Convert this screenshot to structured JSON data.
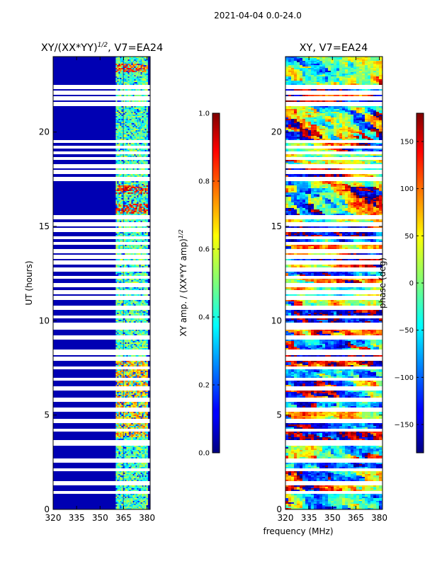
{
  "suptitle": "2021-04-04 0.0-24.0",
  "shared_xlabel": "frequency (MHz)",
  "chart_data": [
    {
      "type": "heatmap",
      "title_main": "XY/(XX*YY)",
      "title_sup": "1/2",
      "title_tail": ", V7=EA24",
      "ylabel": "UT (hours)",
      "xlim": [
        320,
        382
      ],
      "ylim": [
        0,
        24
      ],
      "xticks": [
        320,
        335,
        350,
        365,
        380
      ],
      "yticks": [
        0,
        5,
        10,
        15,
        20
      ],
      "colorbar": {
        "label_main": "XY amp. / (XX*YY amp)",
        "label_sup": "1/2",
        "range": [
          0.0,
          1.0
        ],
        "ticks": [
          0.0,
          0.2,
          0.4,
          0.6,
          0.8,
          1.0
        ],
        "tick_labels": [
          "0.0",
          "0.2",
          "0.4",
          "0.6",
          "0.8",
          "1.0"
        ]
      },
      "background_value": 0.05,
      "active_channel_bands_mhz": [
        [
          360,
          364
        ],
        [
          365,
          370
        ],
        [
          370,
          375
        ],
        [
          375,
          380
        ]
      ],
      "active_band_value_range": [
        0.3,
        0.6
      ],
      "high_value_patches": [
        {
          "ut_range": [
            16.7,
            17.2
          ],
          "value": 0.85
        },
        {
          "ut_range": [
            15.7,
            16.2
          ],
          "value": 0.85
        },
        {
          "ut_range": [
            23.2,
            23.6
          ],
          "value": 0.8
        },
        {
          "ut_range": [
            3.8,
            8.0
          ],
          "value": 0.7
        }
      ]
    },
    {
      "type": "heatmap",
      "title": "XY, V7=EA24",
      "xlim": [
        320,
        382
      ],
      "ylim": [
        0,
        24
      ],
      "xticks": [
        320,
        335,
        350,
        365,
        380
      ],
      "yticks": [
        0,
        5,
        10,
        15,
        20
      ],
      "colorbar": {
        "label": "phase (deg)",
        "range": [
          -180,
          180
        ],
        "ticks": [
          -150,
          -100,
          -50,
          0,
          50,
          100,
          150
        ],
        "tick_labels": [
          "−150",
          "−100",
          "−50",
          "0",
          "50",
          "100",
          "150"
        ]
      },
      "value_distribution": "random phase in [-180, 180] deg, spectrally smooth within each integration"
    }
  ],
  "flagged_ut_hours": [
    0.9,
    1.4,
    2.1,
    2.6,
    3.5,
    3.6,
    4.2,
    4.7,
    5.3,
    5.8,
    6.4,
    6.9,
    7.5,
    8.0,
    8.3,
    8.4,
    9.1,
    9.6,
    9.8,
    10.2,
    10.7,
    11.2,
    11.5,
    11.9,
    12.3,
    12.7,
    13.1,
    13.4,
    13.7,
    14.1,
    14.4,
    14.8,
    15.1,
    15.5,
    17.5,
    17.9,
    18.2,
    18.6,
    18.9,
    19.2,
    19.5,
    21.5,
    21.8,
    22.1,
    22.4
  ]
}
